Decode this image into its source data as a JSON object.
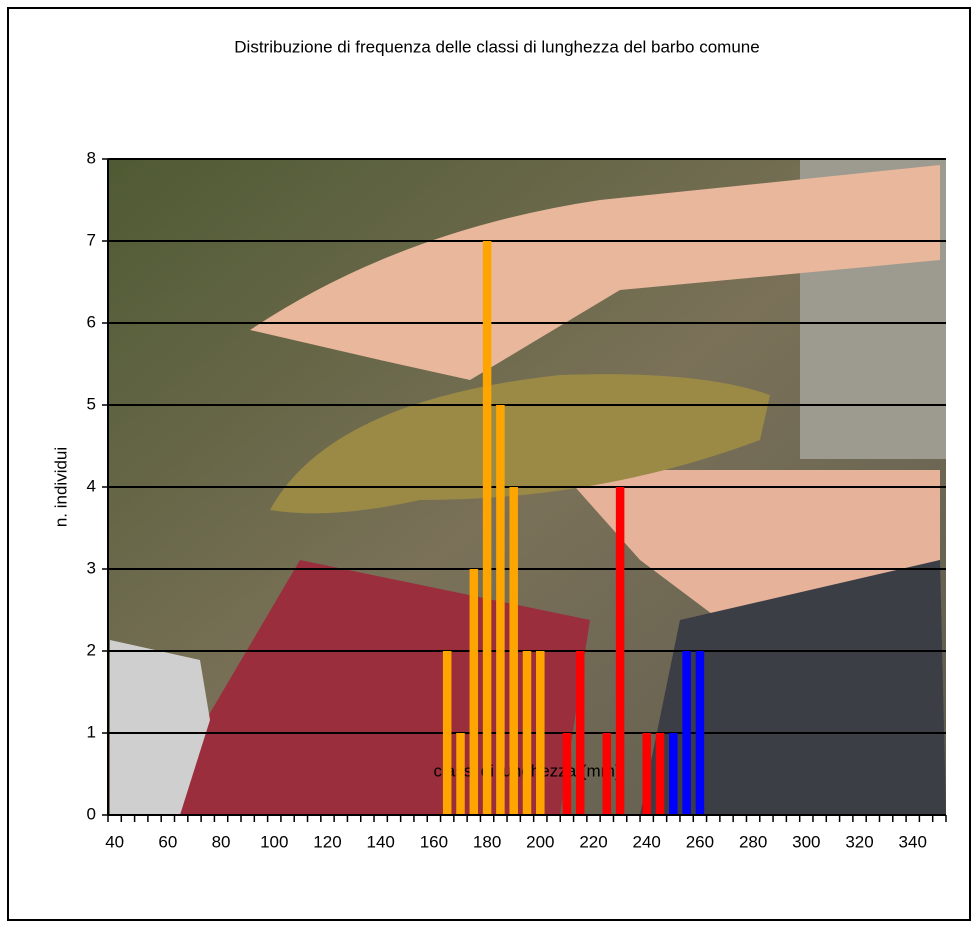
{
  "chart_data": {
    "type": "bar",
    "title": "Distribuzione di frequenza delle classi di lunghezza del barbo comune",
    "x_label": "classi di lunghezza (mm)",
    "y_label": "n. individui",
    "categories": [
      "40",
      null,
      null,
      null,
      "60",
      null,
      null,
      null,
      "80",
      null,
      null,
      null,
      "100",
      null,
      null,
      null,
      "120",
      null,
      null,
      null,
      "140",
      null,
      null,
      null,
      "160",
      null,
      null,
      null,
      "180",
      null,
      null,
      null,
      "200",
      null,
      null,
      null,
      "220",
      null,
      null,
      null,
      "240",
      null,
      null,
      null,
      "260",
      null,
      null,
      null,
      "280",
      null,
      null,
      null,
      "300",
      null,
      null,
      null,
      "320",
      null,
      null,
      null,
      "340",
      null,
      null
    ],
    "values": [
      0,
      0,
      0,
      0,
      0,
      0,
      0,
      0,
      0,
      0,
      0,
      0,
      0,
      0,
      0,
      0,
      0,
      0,
      0,
      0,
      0,
      0,
      0,
      0,
      0,
      2,
      1,
      3,
      7,
      5,
      4,
      2,
      2,
      0,
      1,
      2,
      0,
      1,
      4,
      0,
      1,
      1,
      1,
      2,
      2,
      0,
      0,
      0,
      0,
      0,
      0,
      0,
      0,
      0,
      0,
      0,
      0,
      0,
      0,
      0,
      0,
      0,
      0
    ],
    "colors": [
      null,
      null,
      null,
      null,
      null,
      null,
      null,
      null,
      null,
      null,
      null,
      null,
      null,
      null,
      null,
      null,
      null,
      null,
      null,
      null,
      null,
      null,
      null,
      null,
      null,
      "#ffa500",
      "#ffa500",
      "#ffa500",
      "#ffa500",
      "#ffa500",
      "#ffa500",
      "#ffa500",
      "#ffa500",
      null,
      "#ff0000",
      "#ff0000",
      null,
      "#ff0000",
      "#ff0000",
      null,
      "#ff0000",
      "#ff0000",
      "#0000ff",
      "#0000ff",
      "#0000ff",
      null,
      null,
      null,
      null,
      null,
      null,
      null,
      null,
      null,
      null,
      null,
      null,
      null,
      null,
      null,
      null,
      null,
      null
    ],
    "ylim": [
      0,
      8
    ],
    "yticks": [
      0,
      1,
      2,
      3,
      4,
      5,
      6,
      7,
      8
    ],
    "grid": true
  }
}
